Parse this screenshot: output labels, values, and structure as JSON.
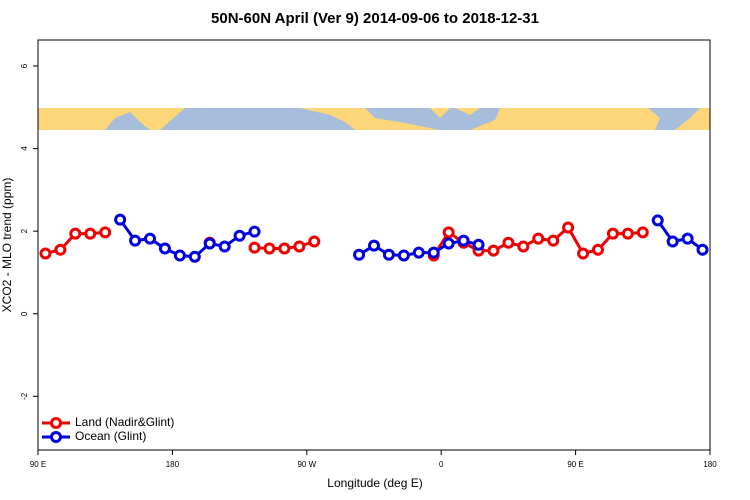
{
  "chart_data": {
    "type": "line",
    "title": "50N-60N April (Ver 9)   2014-09-06 to 2018-12-31",
    "x_label": "Longitude (deg E)",
    "y_label": "XCO2 - MLO trend (ppm)",
    "x": [
      95,
      105,
      115,
      125,
      135,
      145,
      155,
      165,
      175,
      185,
      195,
      205,
      215,
      225,
      235,
      245,
      255,
      265,
      275,
      285,
      295,
      305,
      315,
      325,
      335,
      345,
      355,
      365,
      375,
      385,
      395,
      405,
      415,
      425,
      435,
      445,
      455,
      465,
      475,
      485,
      495,
      505,
      515,
      525,
      535
    ],
    "series": [
      {
        "name": "Land (Nadir&Glint)",
        "color": "#ee0000",
        "values": [
          1.46,
          1.55,
          1.94,
          1.94,
          1.97,
          null,
          null,
          null,
          null,
          null,
          null,
          1.72,
          null,
          null,
          1.6,
          1.58,
          1.58,
          1.63,
          1.75,
          null,
          null,
          null,
          null,
          null,
          null,
          null,
          1.41,
          1.97,
          1.72,
          1.53,
          1.53,
          1.72,
          1.63,
          1.82,
          1.77,
          2.09,
          1.46,
          1.55,
          1.94,
          1.94,
          1.97,
          null,
          null,
          null,
          null
        ]
      },
      {
        "name": "Ocean (Glint)",
        "color": "#0000dd",
        "values": [
          null,
          null,
          null,
          null,
          null,
          2.28,
          1.77,
          1.82,
          1.58,
          1.41,
          1.38,
          1.7,
          1.63,
          1.89,
          1.99,
          null,
          null,
          null,
          null,
          null,
          null,
          1.43,
          1.65,
          1.43,
          1.41,
          1.48,
          1.48,
          1.7,
          1.77,
          1.67,
          null,
          null,
          null,
          null,
          null,
          null,
          null,
          null,
          null,
          null,
          null,
          2.26,
          1.75,
          1.82,
          1.55
        ]
      }
    ],
    "xlim": [
      90,
      540
    ],
    "xticks": [
      {
        "value": 90,
        "label": "90 E"
      },
      180,
      {
        "value": 270,
        "label": "90 W"
      },
      {
        "value": 360,
        "label": "0"
      },
      {
        "value": 450,
        "label": "90 E"
      },
      180
    ],
    "ylim": [
      -3.3,
      6.63
    ],
    "yticks": [
      -2,
      0,
      2,
      4,
      6
    ],
    "legend": "bottomleft"
  }
}
